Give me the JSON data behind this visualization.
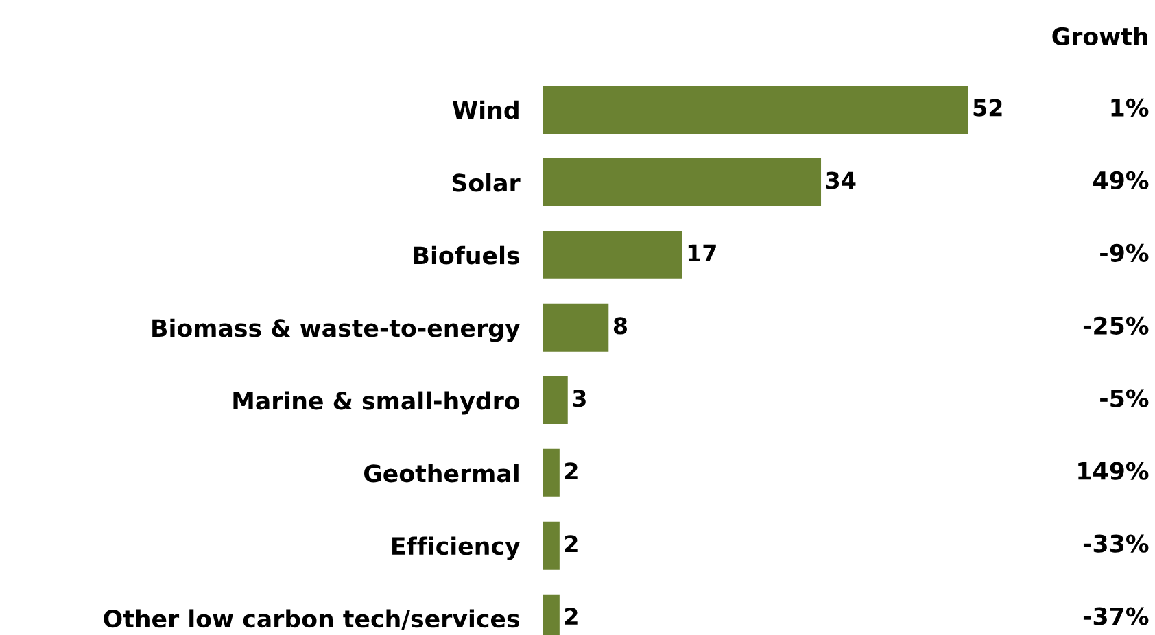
{
  "chart_data": {
    "type": "bar",
    "orientation": "horizontal",
    "categories": [
      "Wind",
      "Solar",
      "Biofuels",
      "Biomass & waste-to-energy",
      "Marine & small-hydro",
      "Geothermal",
      "Efficiency",
      "Other low carbon tech/services"
    ],
    "values": [
      52,
      34,
      17,
      8,
      3,
      2,
      2,
      2
    ],
    "color": "#6b8232",
    "data_labels": true,
    "grid": false,
    "legend": false,
    "annotations": [
      "Growth",
      "1%",
      "49%",
      "-9%",
      "-25%",
      "-5%",
      "149%",
      "-33%",
      "-37%"
    ]
  }
}
